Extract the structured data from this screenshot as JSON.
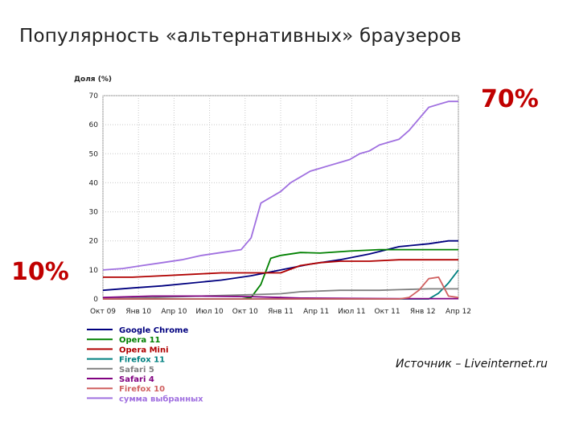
{
  "slide": {
    "title": "Популярность «альтернативных» браузеров",
    "callout_top": "70%",
    "callout_low": "10%",
    "source": "Источник – Liveinternet.ru"
  },
  "chart_data": {
    "type": "line",
    "ylabel": "Доля (%)",
    "ylim": [
      0,
      70
    ],
    "y_ticks": [
      "0",
      "10",
      "20",
      "30",
      "40",
      "50",
      "60",
      "70"
    ],
    "x_tick_labels": [
      "Окт 09",
      "Янв 10",
      "Апр 10",
      "Июл 10",
      "Окт 10",
      "Янв 11",
      "Апр 11",
      "Июл 11",
      "Окт 11",
      "Янв 12",
      "Апр 12"
    ],
    "grid": true,
    "legend_position": "bottom",
    "series": [
      {
        "name": "Google Chrome",
        "color": "#00007f",
        "points": [
          [
            0,
            3
          ],
          [
            3,
            3.8
          ],
          [
            6,
            4.5
          ],
          [
            9,
            5.5
          ],
          [
            12,
            6.5
          ],
          [
            15,
            8
          ],
          [
            18,
            10
          ],
          [
            21,
            12
          ],
          [
            24,
            13.5
          ],
          [
            27,
            15.5
          ],
          [
            30,
            18
          ],
          [
            33,
            19
          ],
          [
            35,
            20
          ],
          [
            36,
            20
          ]
        ]
      },
      {
        "name": "Opera 11",
        "color": "#008000",
        "points": [
          [
            0,
            0
          ],
          [
            14,
            0
          ],
          [
            15,
            0.5
          ],
          [
            16,
            5
          ],
          [
            17,
            14
          ],
          [
            18,
            15
          ],
          [
            20,
            16
          ],
          [
            22,
            15.8
          ],
          [
            25,
            16.5
          ],
          [
            28,
            17
          ],
          [
            30,
            17
          ],
          [
            33,
            17
          ],
          [
            35,
            17
          ],
          [
            36,
            17
          ]
        ]
      },
      {
        "name": "Opera Mini",
        "color": "#b00000",
        "points": [
          [
            0,
            7.5
          ],
          [
            3,
            7.5
          ],
          [
            6,
            8
          ],
          [
            9,
            8.5
          ],
          [
            12,
            9
          ],
          [
            15,
            9
          ],
          [
            18,
            9
          ],
          [
            20,
            11.5
          ],
          [
            22,
            12.5
          ],
          [
            24,
            13
          ],
          [
            27,
            13
          ],
          [
            30,
            13.5
          ],
          [
            33,
            13.5
          ],
          [
            36,
            13.5
          ]
        ]
      },
      {
        "name": "Firefox 11",
        "color": "#008080",
        "points": [
          [
            0,
            0
          ],
          [
            33,
            0
          ],
          [
            34,
            2
          ],
          [
            35,
            5.5
          ],
          [
            36,
            10
          ]
        ]
      },
      {
        "name": "Safari 5",
        "color": "#808080",
        "points": [
          [
            0,
            0
          ],
          [
            5,
            0.5
          ],
          [
            10,
            1
          ],
          [
            15,
            1.5
          ],
          [
            18,
            1.8
          ],
          [
            20,
            2.5
          ],
          [
            24,
            3
          ],
          [
            28,
            3
          ],
          [
            30,
            3.2
          ],
          [
            33,
            3.5
          ],
          [
            36,
            3.5
          ]
        ]
      },
      {
        "name": "Safari 4",
        "color": "#800080",
        "points": [
          [
            0,
            0.5
          ],
          [
            5,
            1
          ],
          [
            10,
            1
          ],
          [
            15,
            0.8
          ],
          [
            18,
            0.5
          ],
          [
            20,
            0.3
          ],
          [
            25,
            0.2
          ],
          [
            30,
            0.1
          ],
          [
            36,
            0.1
          ]
        ]
      },
      {
        "name": "Firefox 10",
        "color": "#d06060",
        "points": [
          [
            0,
            0
          ],
          [
            30,
            0
          ],
          [
            31,
            0.5
          ],
          [
            32,
            3
          ],
          [
            33,
            7
          ],
          [
            34,
            7.5
          ],
          [
            35,
            1
          ],
          [
            36,
            0.5
          ]
        ]
      },
      {
        "name": "сумма выбранных",
        "color": "#a070e0",
        "points": [
          [
            0,
            10
          ],
          [
            2,
            10.5
          ],
          [
            4,
            11.5
          ],
          [
            6,
            12.5
          ],
          [
            8,
            13.5
          ],
          [
            10,
            15
          ],
          [
            12,
            16
          ],
          [
            14,
            17
          ],
          [
            15,
            21
          ],
          [
            16,
            33
          ],
          [
            17,
            35
          ],
          [
            18,
            37
          ],
          [
            19,
            40
          ],
          [
            20,
            42
          ],
          [
            21,
            44
          ],
          [
            22,
            45
          ],
          [
            23,
            46
          ],
          [
            24,
            47
          ],
          [
            25,
            48
          ],
          [
            26,
            50
          ],
          [
            27,
            51
          ],
          [
            28,
            53
          ],
          [
            29,
            54
          ],
          [
            30,
            55
          ],
          [
            31,
            58
          ],
          [
            32,
            62
          ],
          [
            33,
            66
          ],
          [
            34,
            67
          ],
          [
            35,
            68
          ],
          [
            36,
            68
          ]
        ]
      }
    ]
  }
}
